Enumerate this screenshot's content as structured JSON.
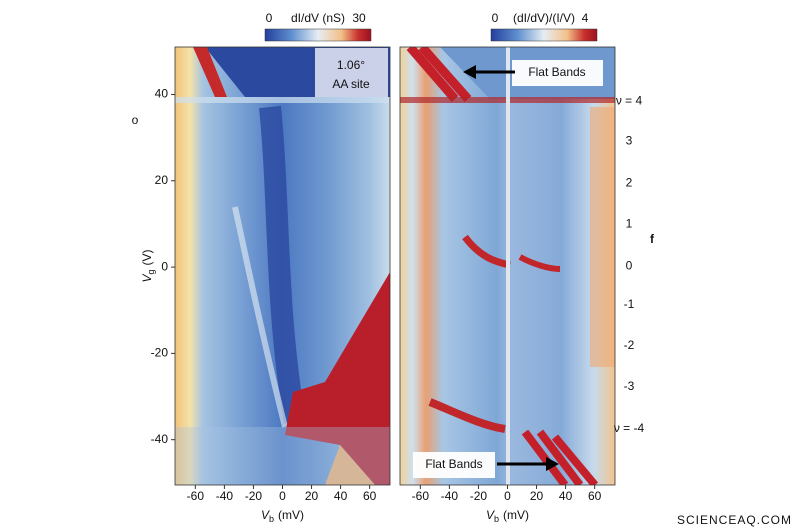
{
  "chart_data": [
    {
      "type": "heatmap",
      "x_label": [
        "V",
        "b",
        "(mV)"
      ],
      "y_label": [
        "V",
        "g",
        "(V)"
      ],
      "xlim": [
        -74,
        74
      ],
      "ylim": [
        -50.5,
        51
      ],
      "xticks": [
        -60,
        -40,
        -20,
        0,
        20,
        40,
        60
      ],
      "yticks": [
        -40,
        -20,
        0,
        20,
        40
      ],
      "colorbar": {
        "ticks": [
          0,
          30
        ],
        "label": "dI/dV (nS)"
      },
      "annotations": [
        "1.06°",
        "AA site"
      ],
      "stray_mark": "o"
    },
    {
      "type": "heatmap",
      "x_label": [
        "V",
        "b",
        "(mV)"
      ],
      "xlim": [
        -74,
        74
      ],
      "ylim": [
        -50.5,
        51
      ],
      "xticks": [
        -60,
        -40,
        -20,
        0,
        20,
        40,
        60
      ],
      "colorbar": {
        "ticks": [
          0,
          4
        ],
        "label": "(dI/dV)/(I/V)"
      },
      "annotations": [
        "Flat Bands",
        "Flat Bands"
      ],
      "filling_label": "f",
      "filling_ticks": [
        {
          "value": 38.4,
          "label": "ν = 4"
        },
        {
          "value": 29.1,
          "label": "3"
        },
        {
          "value": 19.4,
          "label": "2"
        },
        {
          "value": 9.9,
          "label": "1"
        },
        {
          "value": 0.2,
          "label": "0"
        },
        {
          "value": -8.8,
          "label": "-1"
        },
        {
          "value": -18.3,
          "label": "-2"
        },
        {
          "value": -27.7,
          "label": "-3"
        },
        {
          "value": -37.5,
          "label": "ν = -4"
        }
      ],
      "positive_color": "#b0262a",
      "negative_color": "#2b4a8f"
    }
  ],
  "watermark": "SCIENCEAQ.COM"
}
